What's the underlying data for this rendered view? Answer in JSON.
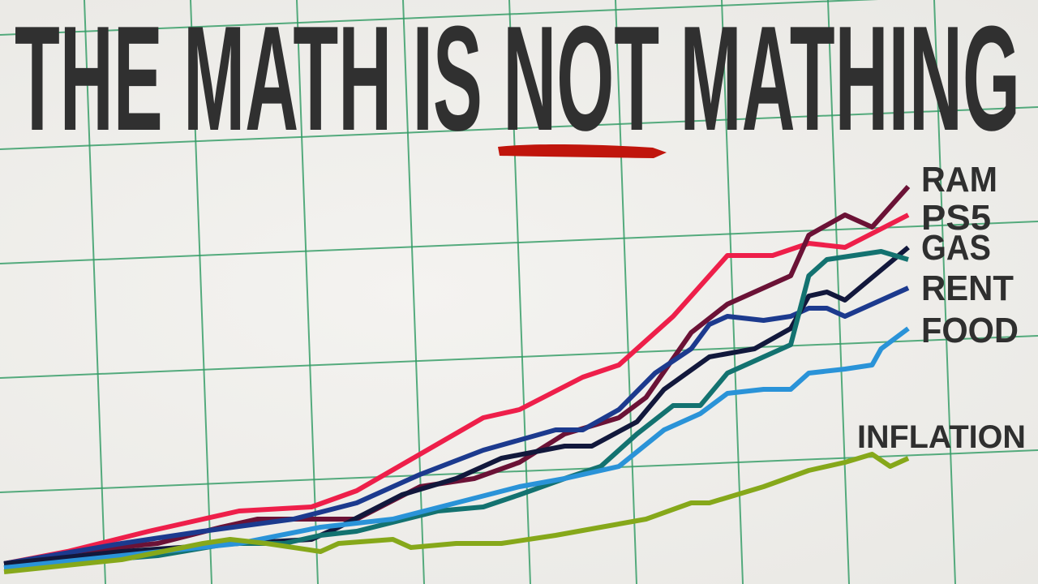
{
  "title": {
    "before": "THE MATH IS",
    "emphasis": "NOT",
    "after": "MATHING",
    "text_color": "#303030",
    "underline_color": "#c0150c"
  },
  "chart_data": {
    "type": "line",
    "title": "THE MATH IS NOT MATHING",
    "xlabel": "",
    "ylabel": "",
    "grid": true,
    "grid_color": "#2e9a62",
    "legend": "right (labels at line ends)",
    "labels": [
      "RAM",
      "PS5",
      "GAS",
      "RENT",
      "FOOD",
      "INFLATION"
    ],
    "series": [
      {
        "name": "PS5",
        "color": "#ee1f4a",
        "points": [
          [
            0,
            1
          ],
          [
            7,
            4
          ],
          [
            16,
            9
          ],
          [
            22,
            12
          ],
          [
            26,
            14
          ],
          [
            34,
            15
          ],
          [
            39,
            19
          ],
          [
            46,
            28
          ],
          [
            53,
            37
          ],
          [
            57,
            39
          ],
          [
            64,
            47
          ],
          [
            68,
            50
          ],
          [
            74,
            62
          ],
          [
            80,
            77
          ],
          [
            85,
            77
          ],
          [
            89,
            80
          ],
          [
            93,
            79
          ],
          [
            100,
            87
          ]
        ]
      },
      {
        "name": "RAM",
        "color": "#6b1236",
        "points": [
          [
            0,
            1
          ],
          [
            8,
            4
          ],
          [
            17,
            6
          ],
          [
            24,
            10
          ],
          [
            28,
            12
          ],
          [
            34,
            12
          ],
          [
            39,
            12
          ],
          [
            46,
            20
          ],
          [
            52,
            22
          ],
          [
            57,
            26
          ],
          [
            62,
            33
          ],
          [
            68,
            37
          ],
          [
            71,
            42
          ],
          [
            76,
            58
          ],
          [
            80,
            65
          ],
          [
            87,
            72
          ],
          [
            89,
            82
          ],
          [
            93,
            87
          ],
          [
            96,
            84
          ],
          [
            100,
            94
          ]
        ]
      },
      {
        "name": "RENT",
        "color": "#1c3a8e",
        "points": [
          [
            0,
            1
          ],
          [
            13,
            6
          ],
          [
            22,
            9
          ],
          [
            32,
            12
          ],
          [
            39,
            16
          ],
          [
            46,
            23
          ],
          [
            53,
            29
          ],
          [
            61,
            34
          ],
          [
            64,
            34
          ],
          [
            68,
            39
          ],
          [
            72,
            48
          ],
          [
            76,
            54
          ],
          [
            78,
            60
          ],
          [
            80,
            62
          ],
          [
            84,
            61
          ],
          [
            87,
            62
          ],
          [
            89,
            64
          ],
          [
            91,
            64
          ],
          [
            93,
            62
          ],
          [
            100,
            69
          ]
        ]
      },
      {
        "name": "GAS",
        "color": "#12183c",
        "points": [
          [
            0,
            1
          ],
          [
            13,
            4
          ],
          [
            26,
            6
          ],
          [
            34,
            7
          ],
          [
            37,
            10
          ],
          [
            44,
            18
          ],
          [
            50,
            22
          ],
          [
            55,
            27
          ],
          [
            62,
            30
          ],
          [
            65,
            30
          ],
          [
            70,
            36
          ],
          [
            73,
            44
          ],
          [
            78,
            52
          ],
          [
            83,
            54
          ],
          [
            87,
            59
          ],
          [
            89,
            67
          ],
          [
            91,
            68
          ],
          [
            93,
            66
          ],
          [
            100,
            79
          ]
        ]
      },
      {
        "color": "#137270",
        "points": [
          [
            0,
            0
          ],
          [
            17,
            3
          ],
          [
            25,
            6
          ],
          [
            31,
            6
          ],
          [
            35,
            8
          ],
          [
            39,
            9
          ],
          [
            48,
            14
          ],
          [
            53,
            15
          ],
          [
            57,
            18
          ],
          [
            62,
            22
          ],
          [
            66,
            25
          ],
          [
            70,
            33
          ],
          [
            74,
            40
          ],
          [
            77,
            40
          ],
          [
            80,
            48
          ],
          [
            84,
            52
          ],
          [
            87,
            55
          ],
          [
            89,
            72
          ],
          [
            91,
            76
          ],
          [
            97,
            78
          ],
          [
            100,
            76
          ]
        ]
      },
      {
        "name": "FOOD",
        "color": "#2a93d8",
        "points": [
          [
            0,
            0
          ],
          [
            13,
            3
          ],
          [
            26,
            6
          ],
          [
            35,
            10
          ],
          [
            43,
            12
          ],
          [
            50,
            16
          ],
          [
            57,
            20
          ],
          [
            62,
            22
          ],
          [
            68,
            25
          ],
          [
            73,
            34
          ],
          [
            77,
            38
          ],
          [
            80,
            43
          ],
          [
            84,
            44
          ],
          [
            87,
            44
          ],
          [
            89,
            48
          ],
          [
            93,
            49
          ],
          [
            96,
            50
          ],
          [
            97,
            54
          ],
          [
            100,
            59
          ]
        ]
      },
      {
        "name": "INFLATION",
        "color": "#86a81a",
        "points": [
          [
            0,
            -1
          ],
          [
            13,
            2
          ],
          [
            22,
            6
          ],
          [
            25,
            7
          ],
          [
            29,
            6
          ],
          [
            35,
            4
          ],
          [
            37,
            6
          ],
          [
            43,
            7
          ],
          [
            45,
            5
          ],
          [
            50,
            6
          ],
          [
            55,
            6
          ],
          [
            61,
            8
          ],
          [
            66,
            10
          ],
          [
            71,
            12
          ],
          [
            76,
            16
          ],
          [
            78,
            16
          ],
          [
            84,
            20
          ],
          [
            89,
            24
          ],
          [
            93,
            26
          ],
          [
            96,
            28
          ],
          [
            98,
            25
          ],
          [
            100,
            27
          ]
        ]
      }
    ]
  }
}
